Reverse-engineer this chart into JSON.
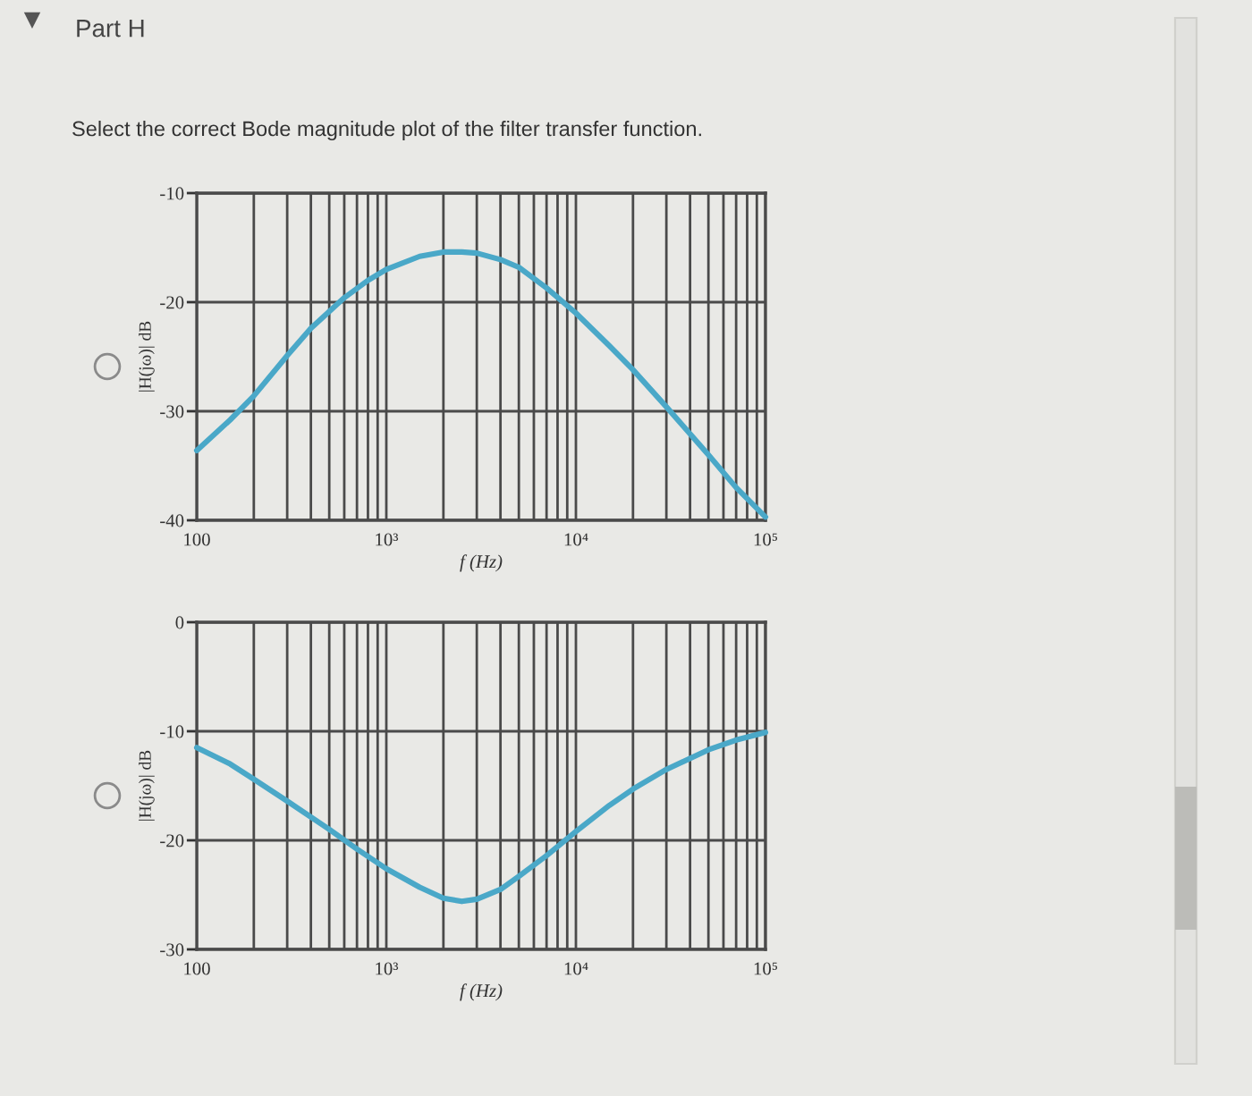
{
  "chart_data": [
    {
      "type": "line",
      "title": "Part H",
      "subtitle": "Select the correct Bode magnitude plot of the filter transfer function.",
      "xlabel": "f (Hz)",
      "ylabel": "|H(jω)| dB",
      "log": "x",
      "grid": true,
      "x": [
        100,
        150,
        200,
        300,
        400,
        600,
        800,
        1000,
        1500,
        2000,
        2500,
        3000,
        4000,
        5000,
        7000,
        10000,
        15000,
        20000,
        30000,
        50000,
        70000,
        100000
      ],
      "series": [
        {
          "color": "#4aa8c8",
          "values": [
            -33.6,
            -30.8,
            -28.6,
            -24.9,
            -22.4,
            -19.6,
            -18.0,
            -17.0,
            -15.8,
            -15.4,
            -15.4,
            -15.5,
            -16.1,
            -16.8,
            -18.7,
            -21.0,
            -24.0,
            -26.2,
            -29.6,
            -34.0,
            -37.0,
            -39.7
          ]
        }
      ],
      "xlim": [
        100,
        100000
      ],
      "ylim": [
        -40,
        -10
      ],
      "xticks": [
        100,
        {
          "value": 200,
          "label": null
        },
        {
          "value": 300,
          "label": null
        },
        {
          "value": 400,
          "label": null
        },
        {
          "value": 500,
          "label": null
        },
        {
          "value": 600,
          "label": null
        },
        {
          "value": 700,
          "label": null
        },
        {
          "value": 800,
          "label": null
        },
        {
          "value": 900,
          "label": null
        },
        {
          "value": 1000,
          "label": "10³"
        },
        {
          "value": 2000,
          "label": null
        },
        {
          "value": 3000,
          "label": null
        },
        {
          "value": 4000,
          "label": null
        },
        {
          "value": 5000,
          "label": null
        },
        {
          "value": 6000,
          "label": null
        },
        {
          "value": 7000,
          "label": null
        },
        {
          "value": 8000,
          "label": null
        },
        {
          "value": 9000,
          "label": null
        },
        {
          "value": 10000,
          "label": "10⁴"
        },
        {
          "value": 20000,
          "label": null
        },
        {
          "value": 30000,
          "label": null
        },
        {
          "value": 40000,
          "label": null
        },
        {
          "value": 50000,
          "label": null
        },
        {
          "value": 60000,
          "label": null
        },
        {
          "value": 70000,
          "label": null
        },
        {
          "value": 80000,
          "label": null
        },
        {
          "value": 90000,
          "label": null
        },
        {
          "value": 100000,
          "label": "10⁵"
        }
      ],
      "yticks": [
        -40,
        -30,
        -20,
        -10
      ]
    },
    {
      "type": "line",
      "xlabel": "f (Hz)",
      "ylabel": "|H(jω)| dB",
      "log": "x",
      "grid": true,
      "x": [
        100,
        150,
        200,
        300,
        500,
        700,
        1000,
        1500,
        2000,
        2500,
        3000,
        4000,
        5000,
        7000,
        10000,
        15000,
        20000,
        30000,
        50000,
        70000,
        100000
      ],
      "series": [
        {
          "color": "#4aa8c8",
          "values": [
            -11.5,
            -13.0,
            -14.4,
            -16.4,
            -19.0,
            -20.8,
            -22.6,
            -24.3,
            -25.3,
            -25.6,
            -25.4,
            -24.5,
            -23.3,
            -21.4,
            -19.2,
            -16.8,
            -15.3,
            -13.5,
            -11.7,
            -10.8,
            -10.1
          ]
        }
      ],
      "xlim": [
        100,
        100000
      ],
      "ylim": [
        -30,
        0
      ],
      "xticks": [
        100,
        {
          "value": 200,
          "label": null
        },
        {
          "value": 300,
          "label": null
        },
        {
          "value": 400,
          "label": null
        },
        {
          "value": 500,
          "label": null
        },
        {
          "value": 600,
          "label": null
        },
        {
          "value": 700,
          "label": null
        },
        {
          "value": 800,
          "label": null
        },
        {
          "value": 900,
          "label": null
        },
        {
          "value": 1000,
          "label": "10³"
        },
        {
          "value": 2000,
          "label": null
        },
        {
          "value": 3000,
          "label": null
        },
        {
          "value": 4000,
          "label": null
        },
        {
          "value": 5000,
          "label": null
        },
        {
          "value": 6000,
          "label": null
        },
        {
          "value": 7000,
          "label": null
        },
        {
          "value": 8000,
          "label": null
        },
        {
          "value": 9000,
          "label": null
        },
        {
          "value": 10000,
          "label": "10⁴"
        },
        {
          "value": 20000,
          "label": null
        },
        {
          "value": 30000,
          "label": null
        },
        {
          "value": 40000,
          "label": null
        },
        {
          "value": 50000,
          "label": null
        },
        {
          "value": 60000,
          "label": null
        },
        {
          "value": 70000,
          "label": null
        },
        {
          "value": 80000,
          "label": null
        },
        {
          "value": 90000,
          "label": null
        },
        {
          "value": 100000,
          "label": "10⁵"
        }
      ],
      "yticks": [
        -30,
        -20,
        -10,
        0
      ]
    }
  ]
}
